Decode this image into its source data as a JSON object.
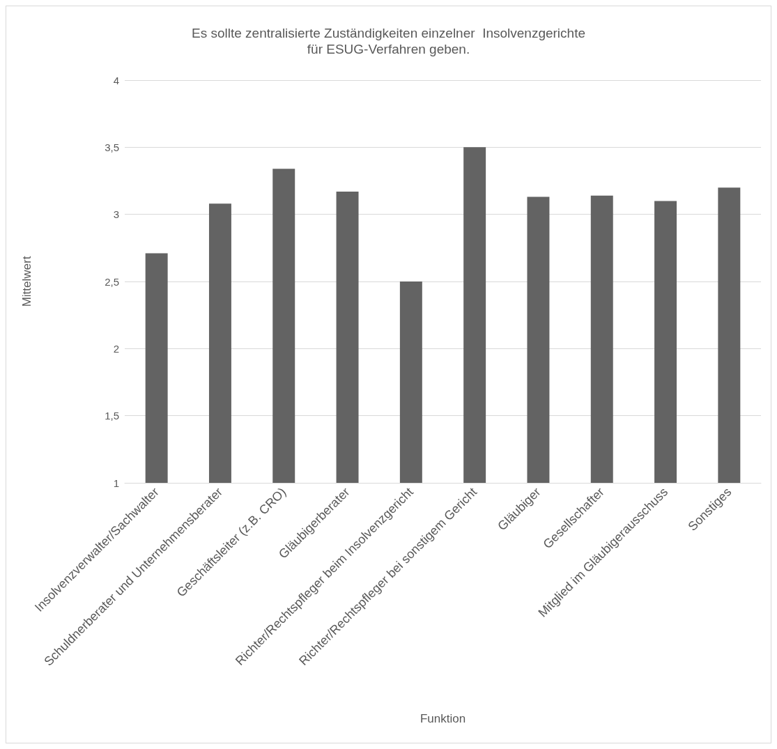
{
  "chart_data": {
    "type": "bar",
    "title": "Es sollte zentralisierte Zuständigkeiten einzelner  Insolvenzgerichte\nfür ESUG-Verfahren geben.",
    "xlabel": "Funktion",
    "ylabel": "Mittelwert",
    "categories": [
      "Insolvenzverwalter/Sachwalter",
      "Schuldnerberater und Unternehmensberater",
      "Geschäftsleiter (z.B. CRO)",
      "Gläubigerberater",
      "Richter/Rechtspfleger beim Insolvenzgericht",
      "Richter/Rechtspfleger bei sonstigem Gericht",
      "Gläubiger",
      "Gesellschafter",
      "Mitglied im Gläubigerausschuss",
      "Sonstiges"
    ],
    "values": [
      2.71,
      3.08,
      3.34,
      3.17,
      2.5,
      3.5,
      3.13,
      3.14,
      3.1,
      3.2
    ],
    "color": "#636363",
    "ylim": [
      1,
      4
    ],
    "yticks": [
      1,
      {
        "value": 1.5,
        "label": "1,5"
      },
      2,
      {
        "value": 2.5,
        "label": "2,5"
      },
      3,
      {
        "value": 3.5,
        "label": "3,5"
      },
      4
    ],
    "grid": "y"
  }
}
